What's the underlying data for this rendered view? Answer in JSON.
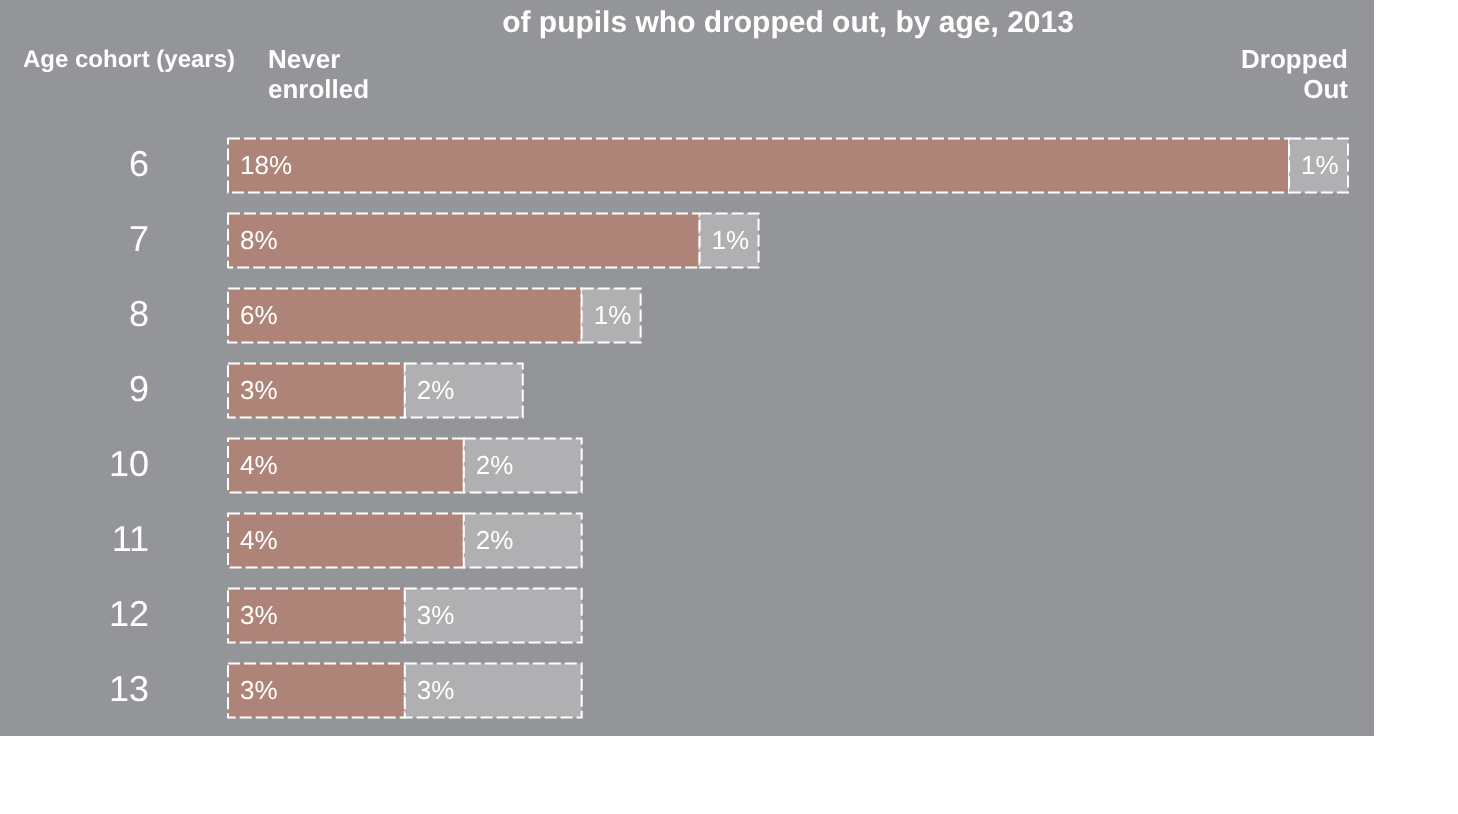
{
  "chart_data": {
    "type": "bar",
    "orientation": "horizontal",
    "stacked": true,
    "title": "of pupils who dropped out, by age, 2013",
    "ylabel": "Age cohort (years)",
    "categories": [
      "6",
      "7",
      "8",
      "9",
      "10",
      "11",
      "12",
      "13"
    ],
    "series": [
      {
        "name": "Never enrolled",
        "color": "#ae8478",
        "values": [
          18,
          8,
          6,
          3,
          4,
          4,
          3,
          3
        ],
        "value_labels": [
          "18%",
          "8%",
          "6%",
          "3%",
          "4%",
          "4%",
          "3%",
          "3%"
        ]
      },
      {
        "name": "Dropped Out",
        "color": "#b0b0b2",
        "values": [
          1,
          1,
          1,
          2,
          2,
          2,
          3,
          3
        ],
        "value_labels": [
          "1%",
          "1%",
          "1%",
          "2%",
          "2%",
          "2%",
          "3%",
          "3%"
        ]
      }
    ],
    "tick_labels": "y",
    "legend": "top"
  }
}
